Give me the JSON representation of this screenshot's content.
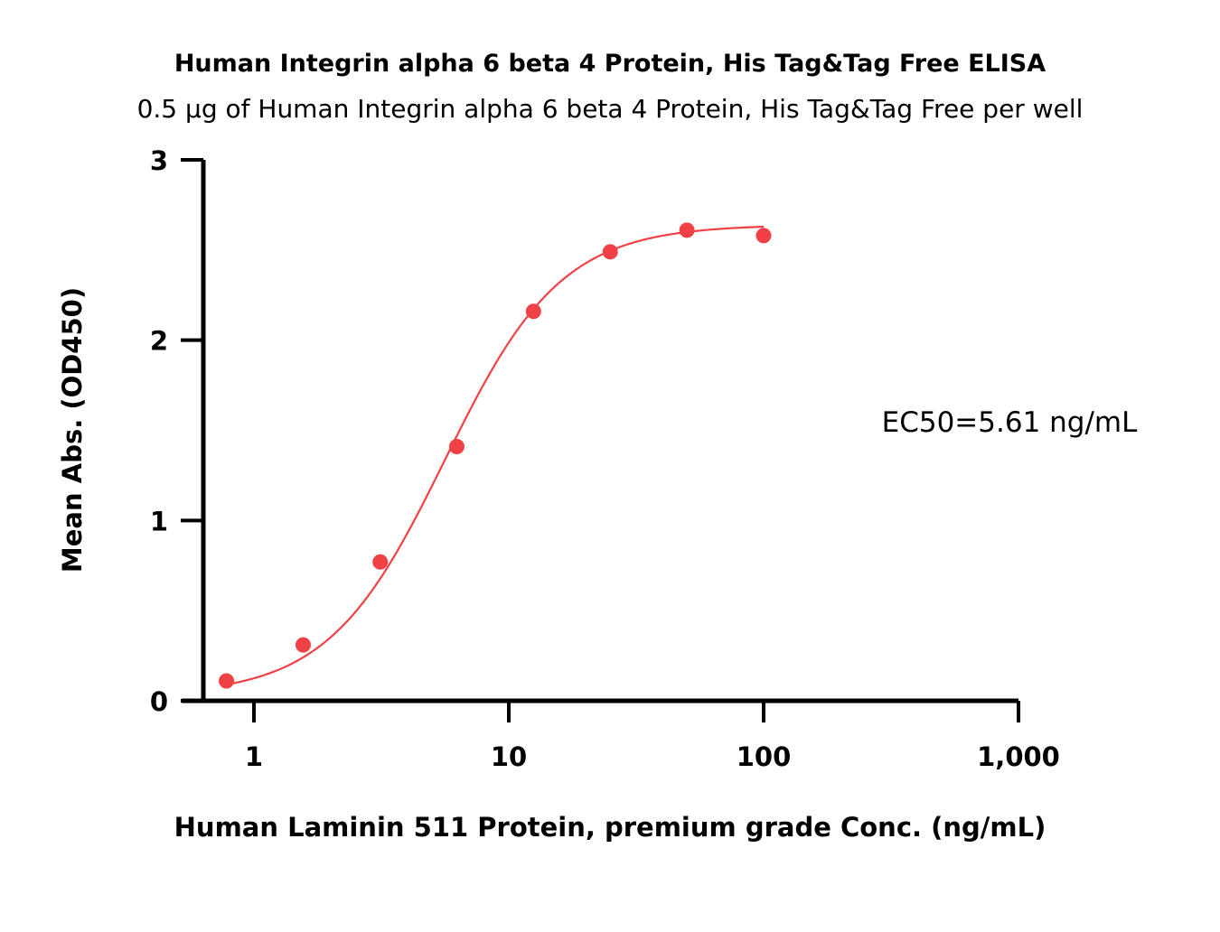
{
  "chart_data": {
    "type": "scatter",
    "title": "Human Integrin alpha 6 beta 4 Protein, His Tag&Tag Free ELISA",
    "subtitle": "0.5 μg of Human Integrin alpha 6 beta 4 Protein, His Tag&Tag Free per well",
    "xlabel": "Human Laminin 511 Protein, premium grade Conc. (ng/mL)",
    "ylabel": "Mean Abs. (OD450)",
    "x_scale": "log10",
    "xlim": [
      0.5,
      1000
    ],
    "ylim": [
      0,
      3
    ],
    "x_ticks": [
      1,
      10,
      100,
      1000
    ],
    "x_tick_labels": [
      "1",
      "10",
      "100",
      "1,000"
    ],
    "y_ticks": [
      0,
      1,
      2,
      3
    ],
    "y_tick_labels": [
      "0",
      "1",
      "2",
      "3"
    ],
    "grid": false,
    "colors": {
      "series": "#ef4146",
      "axis": "#000000"
    },
    "annotation": "EC50=5.61 ng/mL",
    "series": [
      {
        "points": [
          {
            "x": 0.78,
            "y": 0.11
          },
          {
            "x": 1.56,
            "y": 0.31
          },
          {
            "x": 3.13,
            "y": 0.77
          },
          {
            "x": 6.25,
            "y": 1.41
          },
          {
            "x": 12.5,
            "y": 2.16
          },
          {
            "x": 25,
            "y": 2.49
          },
          {
            "x": 50,
            "y": 2.61
          },
          {
            "x": 100,
            "y": 2.58
          }
        ]
      }
    ],
    "fit": {
      "model": "4PL",
      "bottom": 0.03,
      "top": 2.64,
      "ec50": 5.61,
      "hill": 1.9,
      "x_range": [
        0.78,
        100
      ]
    }
  }
}
